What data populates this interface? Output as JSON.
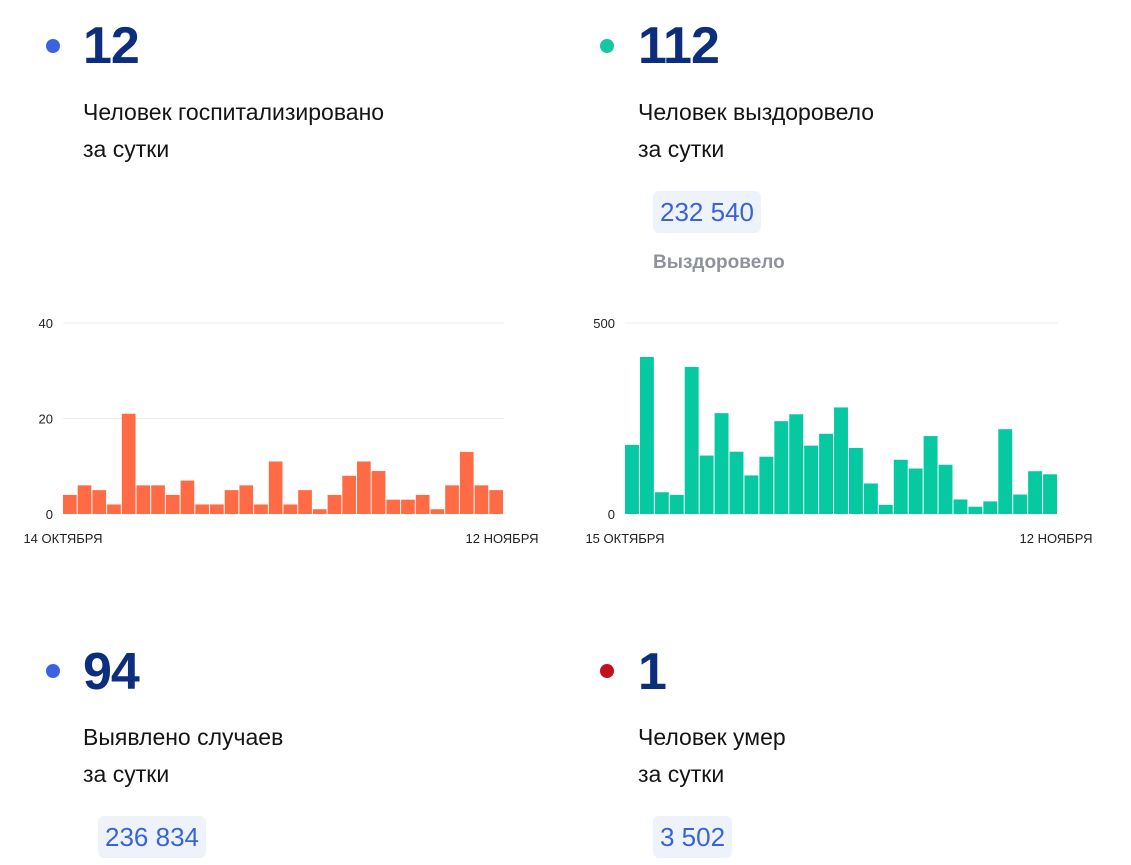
{
  "colors": {
    "blue_dot": "#3a63e4",
    "teal_dot": "#13c79e",
    "red_dot": "#c4101c",
    "big_number": "#0c2e7c",
    "hospital_bar": "#ff6b44",
    "recovered_bar": "#06c9a2",
    "total_text": "#3a63d8",
    "total_bg": "#eef3fb"
  },
  "cards": {
    "hospitalized": {
      "value": "12",
      "line1": "Человек госпитализировано",
      "line2": "за сутки"
    },
    "recovered": {
      "value": "112",
      "line1": "Человек выздоровело",
      "line2": "за сутки",
      "total": "232 540",
      "total_label": "Выздоровело"
    },
    "cases": {
      "value": "94",
      "line1": "Выявлено случаев",
      "line2": "за сутки",
      "total": "236 834"
    },
    "deaths": {
      "value": "1",
      "line1": "Человек умер",
      "line2": "за сутки",
      "total": "3 502"
    }
  },
  "chart_data": [
    {
      "type": "bar",
      "color": "#ff6b44",
      "x_start_label": "14 ОКТЯБРЯ",
      "x_end_label": "12 НОЯБРЯ",
      "yticks": [
        0,
        20,
        40
      ],
      "ylim": [
        0,
        40
      ],
      "grid": true,
      "values": [
        4,
        6,
        5,
        2,
        21,
        6,
        6,
        4,
        7,
        2,
        2,
        5,
        6,
        2,
        11,
        2,
        5,
        1,
        4,
        8,
        11,
        9,
        3,
        3,
        4,
        1,
        6,
        13,
        6,
        5
      ]
    },
    {
      "type": "bar",
      "color": "#06c9a2",
      "x_start_label": "15 ОКТЯБРЯ",
      "x_end_label": "12 НОЯБРЯ",
      "yticks": [
        0,
        500
      ],
      "ylim": [
        0,
        500
      ],
      "grid": true,
      "values": [
        181,
        411,
        57,
        50,
        385,
        153,
        264,
        163,
        101,
        150,
        243,
        261,
        179,
        210,
        279,
        173,
        80,
        24,
        142,
        119,
        204,
        129,
        38,
        19,
        33,
        222,
        51,
        112,
        104
      ]
    }
  ]
}
